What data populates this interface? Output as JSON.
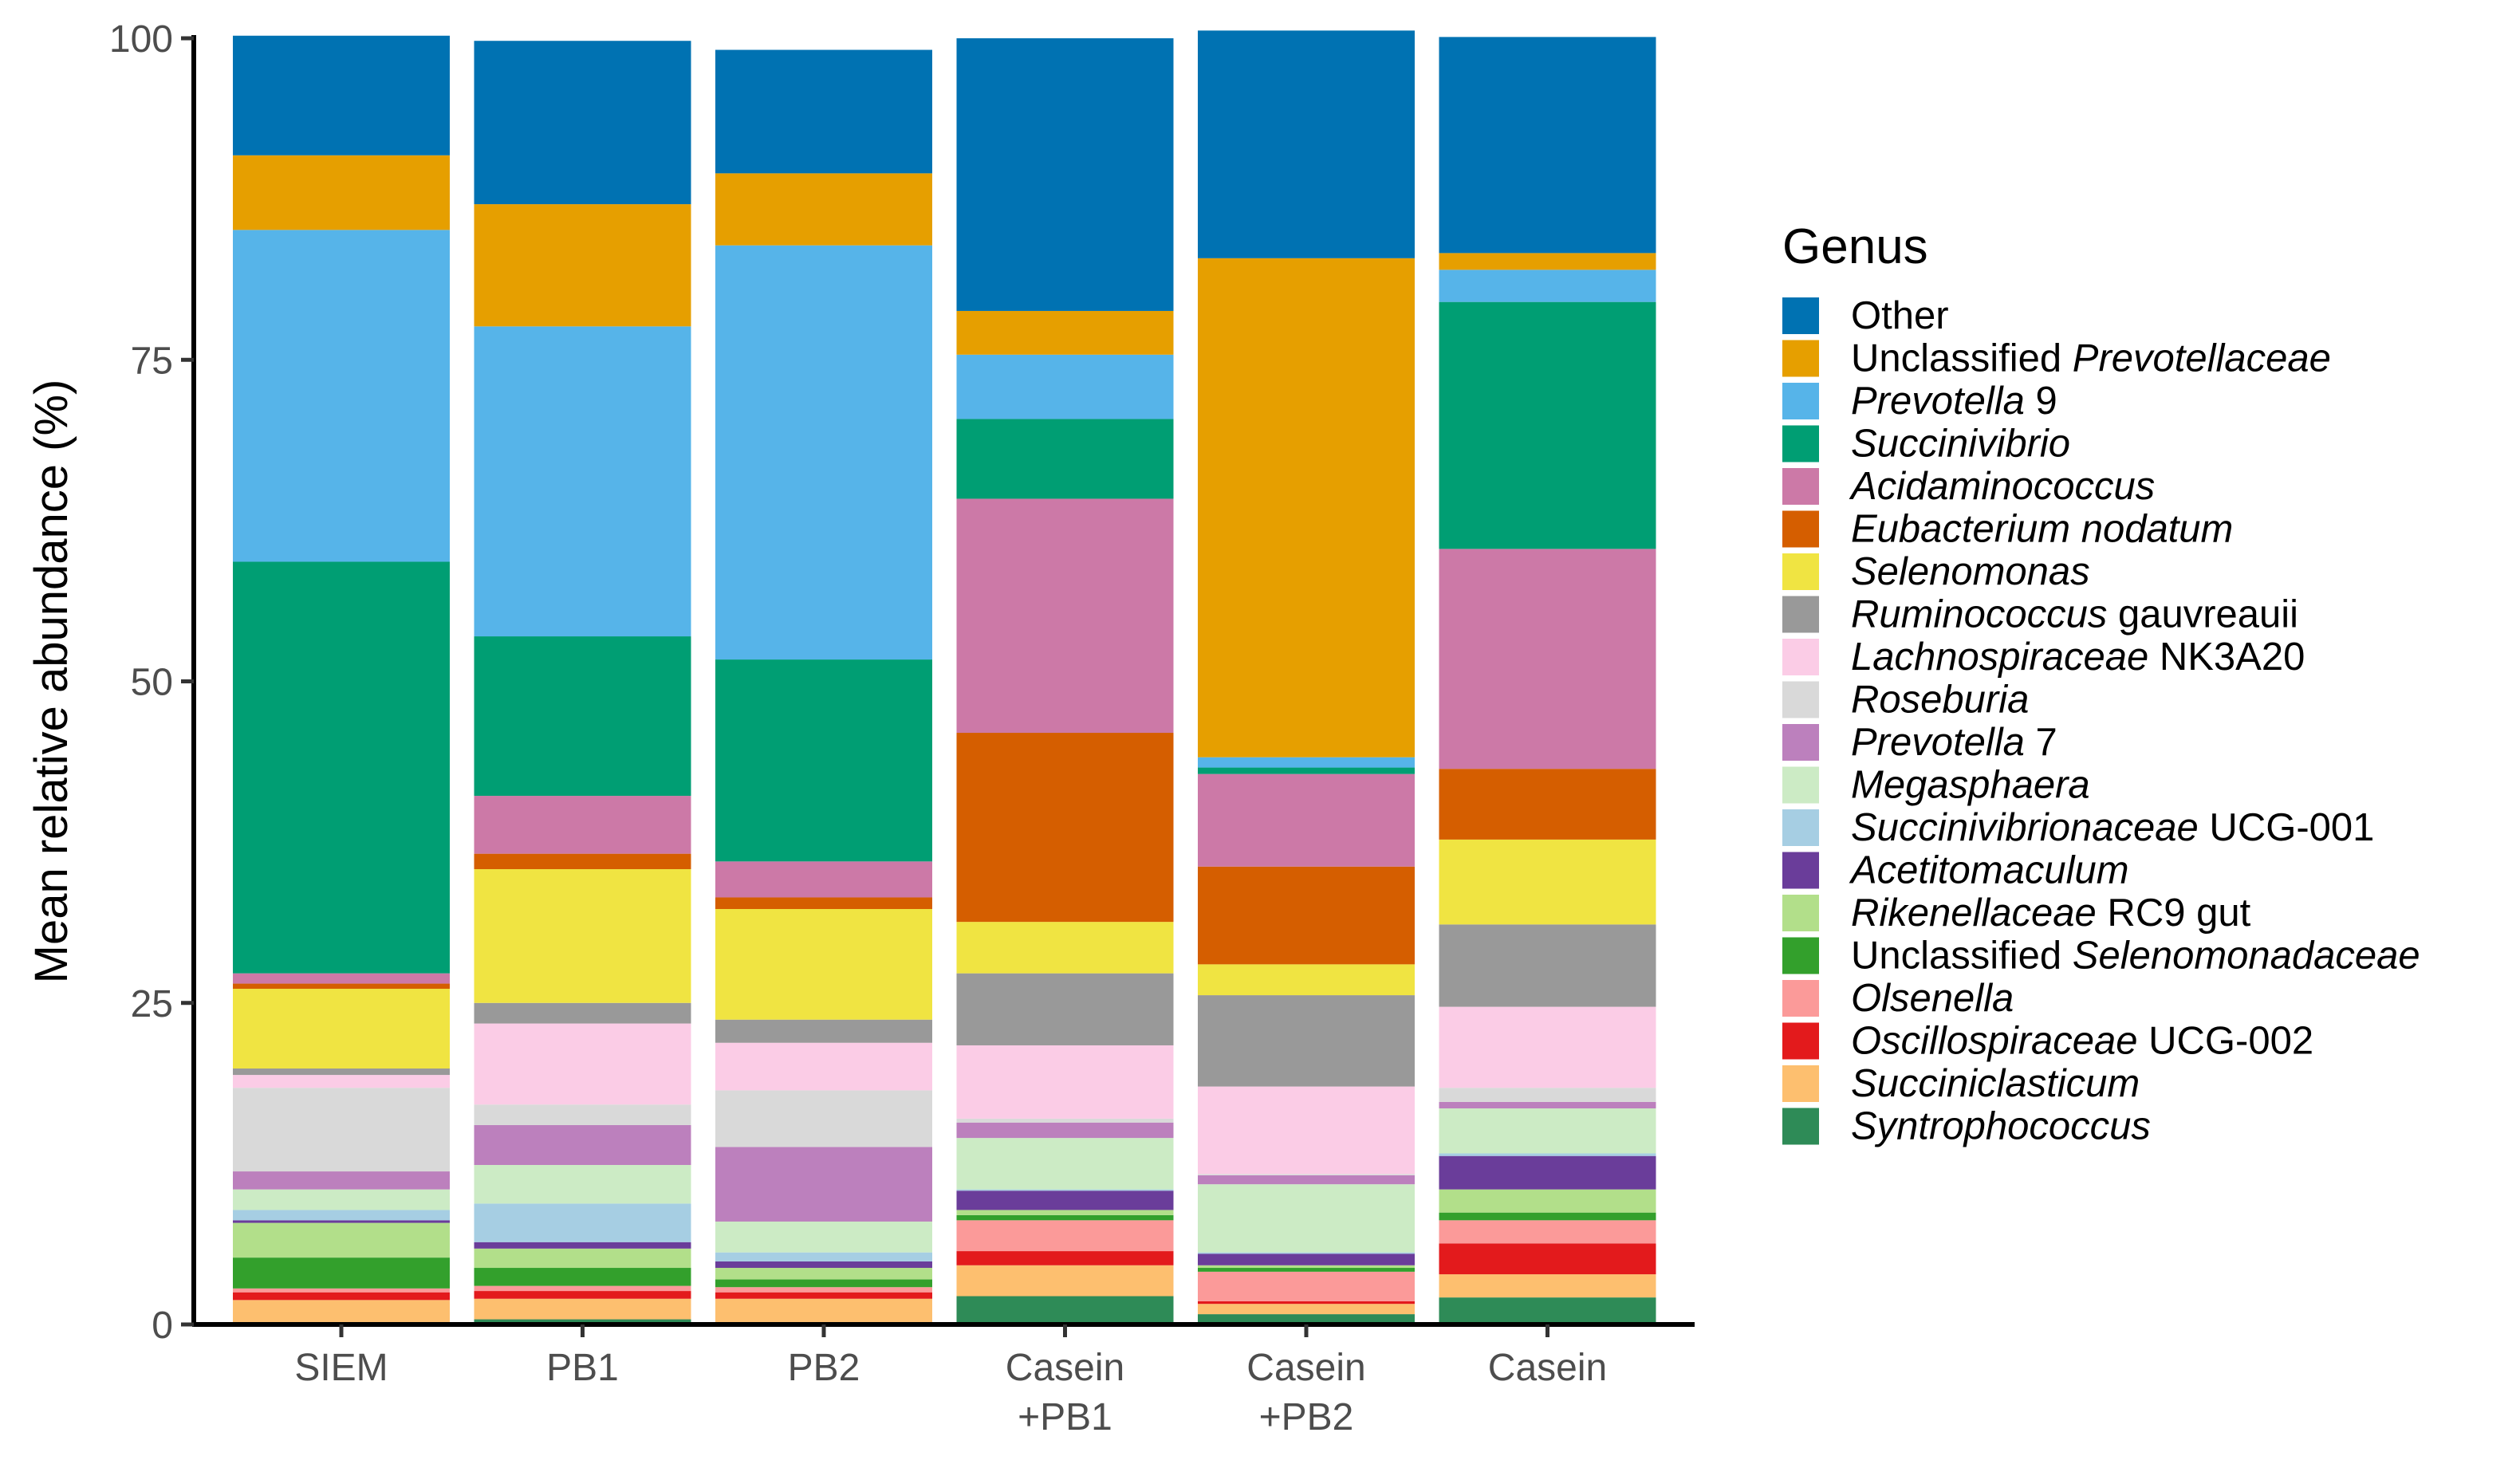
{
  "chart_data": {
    "type": "bar",
    "stacked": true,
    "title": "",
    "xlabel": "",
    "ylabel": "Mean relative abundance (%)",
    "ylim": [
      0,
      100
    ],
    "yticks": [
      0,
      25,
      50,
      75,
      100
    ],
    "categories": [
      {
        "id": "SIEM",
        "lines": [
          "SIEM"
        ]
      },
      {
        "id": "PB1",
        "lines": [
          "PB1"
        ]
      },
      {
        "id": "PB2",
        "lines": [
          "PB2"
        ]
      },
      {
        "id": "Casein+PB1",
        "lines": [
          "Casein",
          "+PB1"
        ]
      },
      {
        "id": "Casein+PB2",
        "lines": [
          "Casein",
          "+PB2"
        ]
      },
      {
        "id": "Casein",
        "lines": [
          "Casein"
        ]
      }
    ],
    "legend": {
      "title": "Genus",
      "position": "right"
    },
    "series": [
      {
        "name": "Other",
        "label": [
          {
            "t": "Other",
            "i": false
          }
        ],
        "color": "#0072B2",
        "values": [
          9.3,
          12.7,
          9.6,
          21.2,
          17.7,
          16.8
        ]
      },
      {
        "name": "Unclassified Prevotellaceae",
        "label": [
          {
            "t": "Unclassified ",
            "i": false
          },
          {
            "t": "Prevotellaceae",
            "i": true
          }
        ],
        "color": "#E69F00",
        "values": [
          5.8,
          9.5,
          5.6,
          3.4,
          38.8,
          1.3
        ]
      },
      {
        "name": "Prevotella 9",
        "label": [
          {
            "t": "Prevotella",
            "i": true
          },
          {
            "t": " 9",
            "i": false
          }
        ],
        "color": "#56B4E9",
        "values": [
          25.8,
          24.1,
          32.2,
          5.0,
          0.8,
          2.5
        ]
      },
      {
        "name": "Succinivibrio",
        "label": [
          {
            "t": "Succinivibrio",
            "i": true
          }
        ],
        "color": "#009E73",
        "values": [
          32.0,
          12.4,
          15.7,
          6.2,
          0.5,
          19.2
        ]
      },
      {
        "name": "Acidaminococcus",
        "label": [
          {
            "t": "Acidaminococcus",
            "i": true
          }
        ],
        "color": "#CC79A7",
        "values": [
          0.8,
          4.5,
          2.8,
          18.2,
          7.2,
          17.1
        ]
      },
      {
        "name": "Eubacterium nodatum",
        "label": [
          {
            "t": "Eubacterium nodatum",
            "i": true
          }
        ],
        "color": "#D55E00",
        "values": [
          0.4,
          1.2,
          0.9,
          14.7,
          7.6,
          5.5
        ]
      },
      {
        "name": "Selenomonas",
        "label": [
          {
            "t": "Selenomonas",
            "i": true
          }
        ],
        "color": "#F0E442",
        "values": [
          6.2,
          10.4,
          8.6,
          4.0,
          2.4,
          6.6
        ]
      },
      {
        "name": "Ruminococcus gauvreauii",
        "label": [
          {
            "t": "Ruminococcus",
            "i": true
          },
          {
            "t": " gauvreauii",
            "i": false
          }
        ],
        "color": "#999999",
        "values": [
          0.5,
          1.6,
          1.8,
          5.6,
          7.1,
          6.4
        ]
      },
      {
        "name": "Lachnospiraceae NK3A20",
        "label": [
          {
            "t": "Lachnospiraceae",
            "i": true
          },
          {
            "t": " NK3A20",
            "i": false
          }
        ],
        "color": "#FBCCE6",
        "values": [
          1.0,
          6.3,
          3.7,
          5.7,
          6.8,
          6.3
        ]
      },
      {
        "name": "Roseburia",
        "label": [
          {
            "t": "Roseburia",
            "i": true
          }
        ],
        "color": "#D9D9D9",
        "values": [
          6.5,
          1.6,
          4.4,
          0.3,
          0.1,
          1.1
        ]
      },
      {
        "name": "Prevotella 7",
        "label": [
          {
            "t": "Prevotella",
            "i": true
          },
          {
            "t": " 7",
            "i": false
          }
        ],
        "color": "#BC80BD",
        "values": [
          1.4,
          3.1,
          5.8,
          1.2,
          0.7,
          0.5
        ]
      },
      {
        "name": "Megasphaera",
        "label": [
          {
            "t": "Megasphaera",
            "i": true
          }
        ],
        "color": "#CCEBC5",
        "values": [
          1.6,
          3.0,
          2.4,
          4.0,
          5.3,
          3.5
        ]
      },
      {
        "name": "Succinivibrionaceae UCG-001",
        "label": [
          {
            "t": "Succinivibrionaceae",
            "i": true
          },
          {
            "t": " UCG-001",
            "i": false
          }
        ],
        "color": "#A6CEE3",
        "values": [
          0.8,
          3.0,
          0.7,
          0.1,
          0.1,
          0.2
        ]
      },
      {
        "name": "Acetitomaculum",
        "label": [
          {
            "t": "Acetitomaculum",
            "i": true
          }
        ],
        "color": "#6A3D9A",
        "values": [
          0.2,
          0.5,
          0.5,
          1.5,
          0.9,
          2.6
        ]
      },
      {
        "name": "Rikenellaceae RC9 gut",
        "label": [
          {
            "t": "Rikenellaceae",
            "i": true
          },
          {
            "t": " RC9 gut",
            "i": false
          }
        ],
        "color": "#B2DF8A",
        "values": [
          2.7,
          1.5,
          0.9,
          0.4,
          0.2,
          1.8
        ]
      },
      {
        "name": "Unclassified Selenomonadaceae",
        "label": [
          {
            "t": "Unclassified ",
            "i": false
          },
          {
            "t": "Selenomonadaceae",
            "i": true
          }
        ],
        "color": "#33A02C",
        "values": [
          2.4,
          1.4,
          0.6,
          0.4,
          0.3,
          0.6
        ]
      },
      {
        "name": "Olsenella",
        "label": [
          {
            "t": "Olsenella",
            "i": true
          }
        ],
        "color": "#FB9A99",
        "values": [
          0.3,
          0.4,
          0.4,
          2.4,
          2.3,
          1.8
        ]
      },
      {
        "name": "Oscillospiraceae UCG-002",
        "label": [
          {
            "t": "Oscillospiraceae",
            "i": true
          },
          {
            "t": " UCG-002",
            "i": false
          }
        ],
        "color": "#E31A1C",
        "values": [
          0.6,
          0.6,
          0.5,
          1.1,
          0.2,
          2.4
        ]
      },
      {
        "name": "Succiniclasticum",
        "label": [
          {
            "t": "Succiniclasticum",
            "i": true
          }
        ],
        "color": "#FDBF6F",
        "values": [
          1.9,
          1.6,
          2.0,
          2.4,
          0.8,
          1.8
        ]
      },
      {
        "name": "Syntrophococcus",
        "label": [
          {
            "t": "Syntrophococcus",
            "i": true
          }
        ],
        "color": "#2E8B57",
        "values": [
          0.0,
          0.4,
          0.0,
          2.2,
          0.8,
          2.1
        ]
      }
    ]
  }
}
